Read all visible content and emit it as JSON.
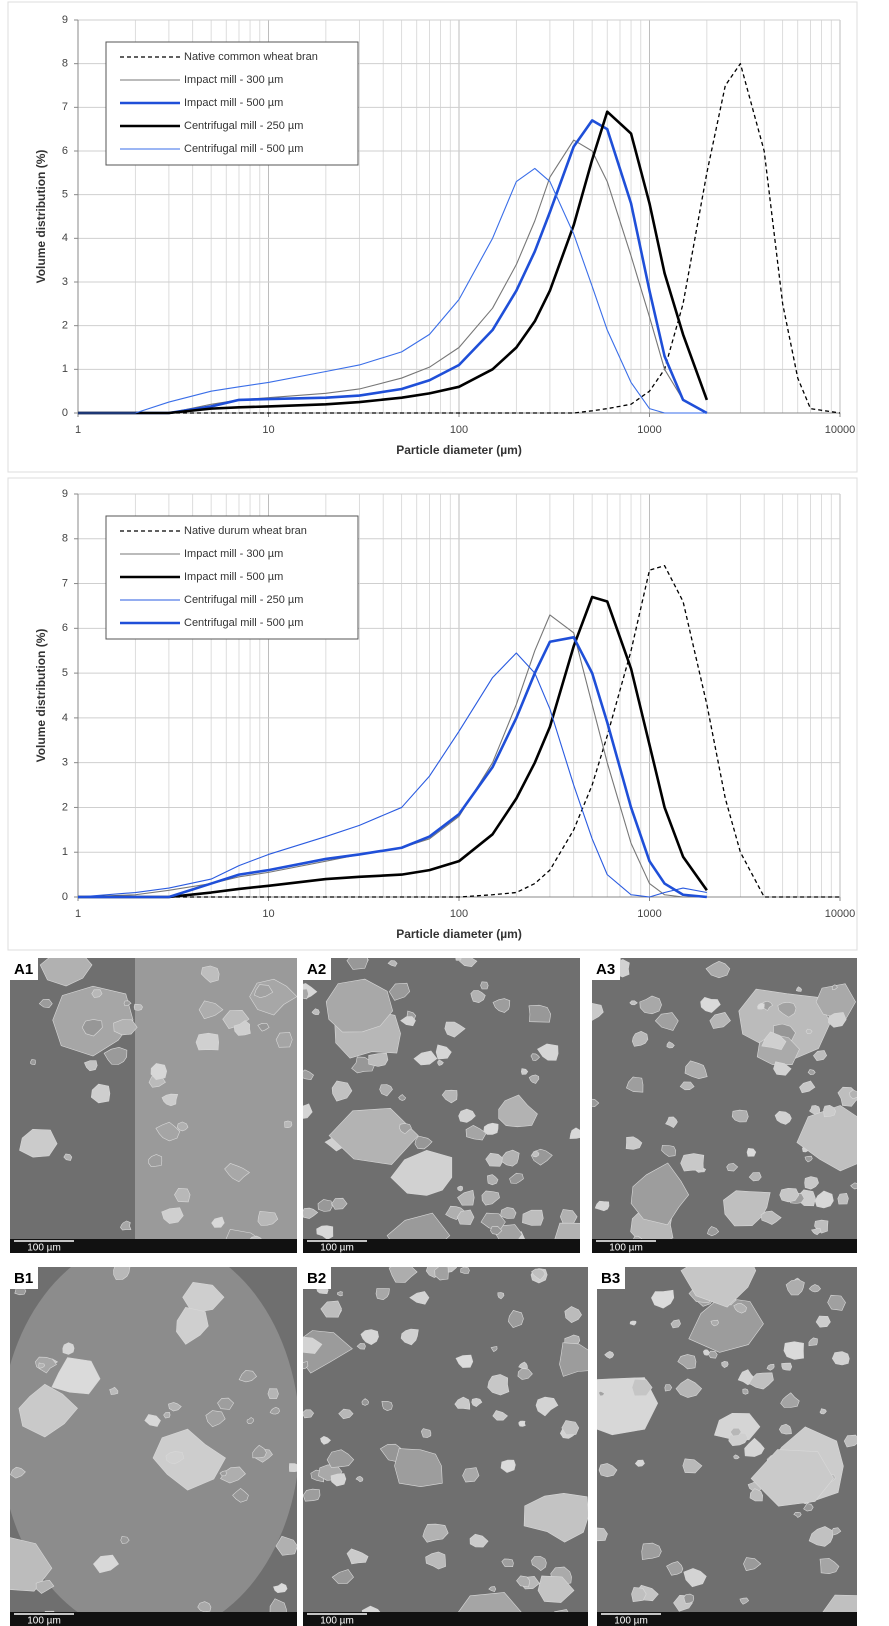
{
  "chart_data": [
    {
      "type": "line",
      "x_label": "Particle diameter (µm)",
      "y_label": "Volume distribution (%)",
      "xscale": "log",
      "xlim": [
        1,
        10000
      ],
      "xticks": [
        1,
        10,
        100,
        1000,
        10000
      ],
      "xminorticks": [
        2,
        3,
        4,
        5,
        6,
        7,
        8,
        9,
        20,
        30,
        40,
        50,
        60,
        70,
        80,
        90,
        200,
        300,
        400,
        500,
        600,
        700,
        800,
        900,
        2000,
        3000,
        4000,
        5000,
        6000,
        7000,
        8000,
        9000
      ],
      "ylim": [
        0,
        9
      ],
      "yticks": [
        0,
        1,
        2,
        3,
        4,
        5,
        6,
        7,
        8,
        9
      ],
      "grid": true,
      "legend": "upper left",
      "x": [
        1,
        2,
        3,
        5,
        7,
        10,
        20,
        30,
        50,
        70,
        100,
        150,
        200,
        250,
        300,
        400,
        500,
        600,
        800,
        1000,
        1200,
        1500,
        2000,
        2500,
        3000,
        4000,
        5000,
        6000,
        7000,
        10000
      ],
      "series": [
        {
          "name": "Native common wheat bran",
          "color": "#000000",
          "line_style": "dashed",
          "values": [
            0,
            0,
            0,
            0,
            0,
            0,
            0,
            0,
            0,
            0,
            0,
            0,
            0,
            0,
            0,
            0,
            0.05,
            0.1,
            0.2,
            0.5,
            1.0,
            2.5,
            5.5,
            7.5,
            8.0,
            6.0,
            2.5,
            0.8,
            0.1,
            0
          ]
        },
        {
          "name": "Impact mill - 300 µm",
          "color": "#777777",
          "line_style": "thin",
          "values": [
            0,
            0,
            0,
            0.2,
            0.3,
            0.35,
            0.45,
            0.55,
            0.8,
            1.05,
            1.5,
            2.4,
            3.4,
            4.4,
            5.4,
            6.25,
            6.0,
            5.3,
            3.6,
            2.2,
            1.0,
            0.3,
            0,
            null,
            null,
            null,
            null,
            null,
            null,
            null
          ]
        },
        {
          "name": "Impact mill - 500 µm",
          "color": "#1f4fd8",
          "line_style": "thick",
          "values": [
            0,
            0,
            0,
            0.15,
            0.3,
            0.32,
            0.35,
            0.4,
            0.55,
            0.75,
            1.1,
            1.9,
            2.8,
            3.7,
            4.6,
            6.1,
            6.7,
            6.5,
            4.8,
            2.8,
            1.3,
            0.3,
            0,
            null,
            null,
            null,
            null,
            null,
            null,
            null
          ]
        },
        {
          "name": "Centrifugal mill - 250 µm",
          "color": "#000000",
          "line_style": "thick",
          "values": [
            0,
            0,
            0,
            0.1,
            0.13,
            0.15,
            0.2,
            0.25,
            0.35,
            0.45,
            0.6,
            1.0,
            1.5,
            2.1,
            2.8,
            4.3,
            5.8,
            6.9,
            6.4,
            4.8,
            3.2,
            1.8,
            0.3,
            null,
            null,
            null,
            null,
            null,
            null,
            null
          ]
        },
        {
          "name": "Centrifugal mill - 500 µm",
          "color": "#3a6ee8",
          "line_style": "thin",
          "values": [
            0,
            0,
            0.25,
            0.5,
            0.6,
            0.7,
            0.95,
            1.1,
            1.4,
            1.8,
            2.6,
            4.0,
            5.3,
            5.6,
            5.3,
            4.1,
            2.9,
            1.9,
            0.7,
            0.1,
            0,
            0,
            0,
            null,
            null,
            null,
            null,
            null,
            null,
            null
          ]
        }
      ]
    },
    {
      "type": "line",
      "x_label": "Particle diameter (µm)",
      "y_label": "Volume distribution (%)",
      "xscale": "log",
      "xlim": [
        1,
        10000
      ],
      "xticks": [
        1,
        10,
        100,
        1000,
        10000
      ],
      "xminorticks": [
        2,
        3,
        4,
        5,
        6,
        7,
        8,
        9,
        20,
        30,
        40,
        50,
        60,
        70,
        80,
        90,
        200,
        300,
        400,
        500,
        600,
        700,
        800,
        900,
        2000,
        3000,
        4000,
        5000,
        6000,
        7000,
        8000,
        9000
      ],
      "ylim": [
        0,
        9
      ],
      "yticks": [
        0,
        1,
        2,
        3,
        4,
        5,
        6,
        7,
        8,
        9
      ],
      "grid": true,
      "legend": "upper left",
      "x": [
        1,
        2,
        3,
        5,
        7,
        10,
        20,
        30,
        50,
        70,
        100,
        150,
        200,
        250,
        300,
        400,
        500,
        600,
        800,
        1000,
        1200,
        1500,
        2000,
        2500,
        3000,
        4000,
        5000,
        6000,
        7000,
        10000
      ],
      "series": [
        {
          "name": "Native durum wheat bran",
          "color": "#000000",
          "line_style": "dashed",
          "values": [
            0,
            0,
            0,
            0,
            0,
            0,
            0,
            0,
            0,
            0,
            0,
            0.05,
            0.1,
            0.3,
            0.6,
            1.5,
            2.5,
            3.6,
            5.5,
            7.3,
            7.4,
            6.6,
            4.3,
            2.2,
            1.0,
            0,
            0,
            0,
            0,
            0
          ]
        },
        {
          "name": "Impact mill - 300 µm",
          "color": "#777777",
          "line_style": "thin",
          "values": [
            0,
            0.05,
            0.15,
            0.3,
            0.45,
            0.55,
            0.8,
            0.95,
            1.1,
            1.3,
            1.8,
            3.0,
            4.3,
            5.5,
            6.3,
            5.9,
            4.3,
            3.0,
            1.2,
            0.3,
            0.05,
            0,
            0,
            null,
            null,
            null,
            null,
            null,
            null,
            null
          ]
        },
        {
          "name": "Impact mill - 500 µm",
          "color": "#000000",
          "line_style": "thick",
          "values": [
            0,
            0,
            0,
            0.1,
            0.18,
            0.25,
            0.4,
            0.45,
            0.5,
            0.6,
            0.8,
            1.4,
            2.2,
            3.0,
            3.8,
            5.6,
            6.7,
            6.6,
            5.1,
            3.4,
            2.0,
            0.9,
            0.15,
            null,
            null,
            null,
            null,
            null,
            null,
            null
          ]
        },
        {
          "name": "Centrifugal mill - 250 µm",
          "color": "#2a5be0",
          "line_style": "thin",
          "values": [
            0,
            0.1,
            0.2,
            0.4,
            0.7,
            0.95,
            1.35,
            1.6,
            2.0,
            2.7,
            3.7,
            4.9,
            5.45,
            5.0,
            4.2,
            2.5,
            1.3,
            0.5,
            0.05,
            0,
            0.1,
            0.2,
            0.1,
            null,
            null,
            null,
            null,
            null,
            null,
            null
          ]
        },
        {
          "name": "Centrifugal mill - 500 µm",
          "color": "#1f4fd8",
          "line_style": "thick",
          "values": [
            0,
            0,
            0,
            0.3,
            0.5,
            0.6,
            0.85,
            0.95,
            1.1,
            1.35,
            1.85,
            2.9,
            4.0,
            5.0,
            5.7,
            5.8,
            5.0,
            3.9,
            2.0,
            0.8,
            0.3,
            0.05,
            0,
            null,
            null,
            null,
            null,
            null,
            null,
            null
          ]
        }
      ]
    }
  ],
  "micrographs": {
    "panels": [
      {
        "label": "A1",
        "scale_bar": "100 µm"
      },
      {
        "label": "A2",
        "scale_bar": "100 µm"
      },
      {
        "label": "A3",
        "scale_bar": "100 µm"
      },
      {
        "label": "B1",
        "scale_bar": "100 µm"
      },
      {
        "label": "B2",
        "scale_bar": "100 µm"
      },
      {
        "label": "B3",
        "scale_bar": "100 µm"
      }
    ]
  }
}
